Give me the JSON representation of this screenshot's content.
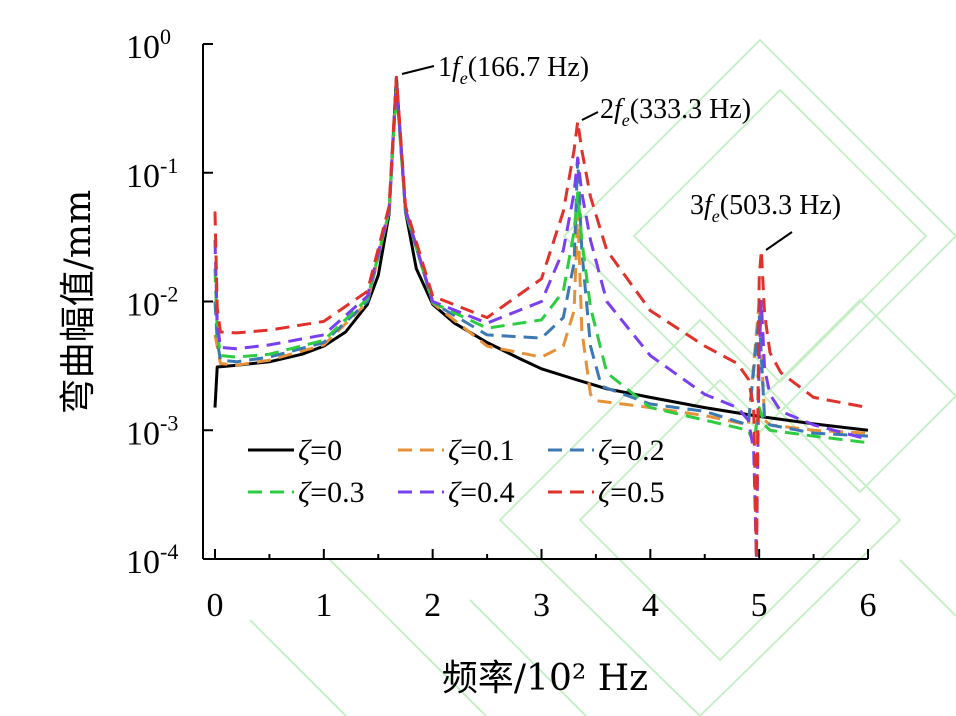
{
  "chart_data": {
    "type": "line",
    "title": "",
    "xlabel": "频率/10² Hz",
    "ylabel": "弯曲幅值/mm",
    "xlim": [
      0,
      6
    ],
    "ylim": [
      0.0001,
      1
    ],
    "y_scale": "log",
    "x_ticks": [
      {
        "value": 0,
        "label": "0"
      },
      {
        "value": 1,
        "label": "1"
      },
      {
        "value": 2,
        "label": "2"
      },
      {
        "value": 3,
        "label": "3"
      },
      {
        "value": 4,
        "label": "4"
      },
      {
        "value": 5,
        "label": "5"
      },
      {
        "value": 6,
        "label": "6"
      }
    ],
    "y_ticks": [
      {
        "value": 1,
        "base": "10",
        "exp": "0"
      },
      {
        "value": 0.1,
        "base": "10",
        "exp": "-1"
      },
      {
        "value": 0.01,
        "base": "10",
        "exp": "-2"
      },
      {
        "value": 0.001,
        "base": "10",
        "exp": "-3"
      },
      {
        "value": 0.0001,
        "base": "10",
        "exp": "-4"
      }
    ],
    "grid": false,
    "legend_position": "bottom-left",
    "series": [
      {
        "name": "ζ=0",
        "color": "#000000",
        "dash": "solid",
        "x": [
          0.0,
          0.02,
          0.2,
          0.5,
          0.8,
          1.0,
          1.2,
          1.4,
          1.5,
          1.6,
          1.667,
          1.75,
          1.85,
          2.0,
          2.2,
          2.5,
          2.8,
          3.0,
          3.3,
          3.6,
          4.0,
          4.5,
          5.0,
          5.5,
          6.0
        ],
        "y": [
          0.0015,
          0.0031,
          0.0032,
          0.0034,
          0.0039,
          0.0045,
          0.0058,
          0.0095,
          0.016,
          0.048,
          0.55,
          0.05,
          0.018,
          0.0095,
          0.0068,
          0.0048,
          0.0036,
          0.003,
          0.0025,
          0.0021,
          0.0018,
          0.0015,
          0.00128,
          0.00112,
          0.001
        ]
      },
      {
        "name": "ζ=0.1",
        "color": "#e69138",
        "dash": "dashed",
        "x": [
          0.0,
          0.02,
          0.05,
          0.2,
          0.5,
          1.0,
          1.4,
          1.6,
          1.667,
          1.75,
          2.0,
          2.5,
          3.0,
          3.2,
          3.3,
          3.333,
          3.37,
          3.45,
          3.5,
          4.0,
          4.5,
          4.9,
          5.0,
          5.05,
          5.1,
          5.5,
          6.0
        ],
        "y": [
          0.0055,
          0.0045,
          0.0033,
          0.0032,
          0.0035,
          0.0046,
          0.0098,
          0.05,
          0.5,
          0.05,
          0.0097,
          0.0045,
          0.0037,
          0.0045,
          0.0085,
          0.05,
          0.006,
          0.0019,
          0.0017,
          0.0015,
          0.0013,
          0.0011,
          0.01,
          0.0012,
          0.0011,
          0.001,
          0.00095
        ]
      },
      {
        "name": "ζ=0.2",
        "color": "#3c78b4",
        "dash": "dashed",
        "x": [
          0.0,
          0.02,
          0.05,
          0.2,
          0.5,
          1.0,
          1.4,
          1.6,
          1.667,
          1.75,
          2.0,
          2.5,
          3.0,
          3.2,
          3.3,
          3.333,
          3.37,
          3.45,
          3.55,
          4.0,
          4.5,
          4.9,
          5.0,
          5.05,
          5.1,
          5.5,
          6.0
        ],
        "y": [
          0.01,
          0.005,
          0.0035,
          0.0034,
          0.0037,
          0.0048,
          0.01,
          0.05,
          0.5,
          0.05,
          0.0098,
          0.0055,
          0.0052,
          0.0075,
          0.02,
          0.13,
          0.025,
          0.0045,
          0.0022,
          0.0016,
          0.0014,
          0.0011,
          0.008,
          0.0012,
          0.0011,
          0.00095,
          0.0009
        ]
      },
      {
        "name": "ζ=0.3",
        "color": "#2ecc40",
        "dash": "dashed",
        "x": [
          0.0,
          0.02,
          0.05,
          0.2,
          0.5,
          1.0,
          1.4,
          1.6,
          1.667,
          1.75,
          2.0,
          2.5,
          3.0,
          3.2,
          3.3,
          3.333,
          3.37,
          3.45,
          3.6,
          4.0,
          4.5,
          4.9,
          4.95,
          5.0,
          5.05,
          5.1,
          5.5,
          6.0
        ],
        "y": [
          0.018,
          0.006,
          0.0038,
          0.0037,
          0.0039,
          0.005,
          0.0105,
          0.05,
          0.45,
          0.05,
          0.0098,
          0.0062,
          0.0072,
          0.012,
          0.035,
          0.07,
          0.03,
          0.009,
          0.0028,
          0.0015,
          0.0012,
          0.001,
          0.0008,
          0.0015,
          0.0011,
          0.001,
          0.0009,
          0.0008
        ]
      },
      {
        "name": "ζ=0.4",
        "color": "#7b3ff2",
        "dash": "dashed",
        "x": [
          0.0,
          0.02,
          0.05,
          0.2,
          0.5,
          1.0,
          1.4,
          1.6,
          1.667,
          1.75,
          2.0,
          2.5,
          3.0,
          3.2,
          3.3,
          3.333,
          3.37,
          3.45,
          3.6,
          4.0,
          4.5,
          4.8,
          4.9,
          4.95,
          4.975,
          5.0,
          5.02,
          5.05,
          5.1,
          5.2,
          5.5,
          6.0
        ],
        "y": [
          0.03,
          0.007,
          0.0044,
          0.0043,
          0.0046,
          0.0055,
          0.011,
          0.052,
          0.5,
          0.052,
          0.01,
          0.0068,
          0.01,
          0.025,
          0.07,
          0.13,
          0.07,
          0.03,
          0.01,
          0.0038,
          0.0019,
          0.0015,
          0.0012,
          0.0007,
          0.0001,
          0.004,
          0.01,
          0.003,
          0.0019,
          0.0014,
          0.0011,
          0.00085
        ]
      },
      {
        "name": "ζ=0.5",
        "color": "#e0322b",
        "dash": "dashed",
        "x": [
          0.0,
          0.02,
          0.05,
          0.2,
          0.5,
          1.0,
          1.4,
          1.6,
          1.667,
          1.75,
          2.0,
          2.5,
          3.0,
          3.2,
          3.3,
          3.333,
          3.37,
          3.45,
          3.6,
          4.0,
          4.5,
          4.8,
          4.9,
          4.95,
          4.975,
          5.0,
          5.02,
          5.05,
          5.1,
          5.2,
          5.5,
          6.0
        ],
        "y": [
          0.05,
          0.009,
          0.0058,
          0.0057,
          0.006,
          0.007,
          0.012,
          0.055,
          0.55,
          0.055,
          0.011,
          0.0075,
          0.015,
          0.05,
          0.15,
          0.25,
          0.15,
          0.065,
          0.025,
          0.0085,
          0.0045,
          0.0033,
          0.0025,
          0.0015,
          0.0001,
          0.015,
          0.025,
          0.008,
          0.004,
          0.0028,
          0.0018,
          0.0015
        ]
      }
    ],
    "annotations": [
      {
        "x": 1.667,
        "y": 0.55,
        "num": "1",
        "var": "f",
        "sub": "e",
        "rest": "(166.7 Hz)"
      },
      {
        "x": 3.333,
        "y": 0.25,
        "num": "2",
        "var": "f",
        "sub": "e",
        "rest": "(333.3 Hz)"
      },
      {
        "x": 5.033,
        "y": 0.025,
        "num": "3",
        "var": "f",
        "sub": "e",
        "rest": "(503.3 Hz)"
      }
    ]
  }
}
